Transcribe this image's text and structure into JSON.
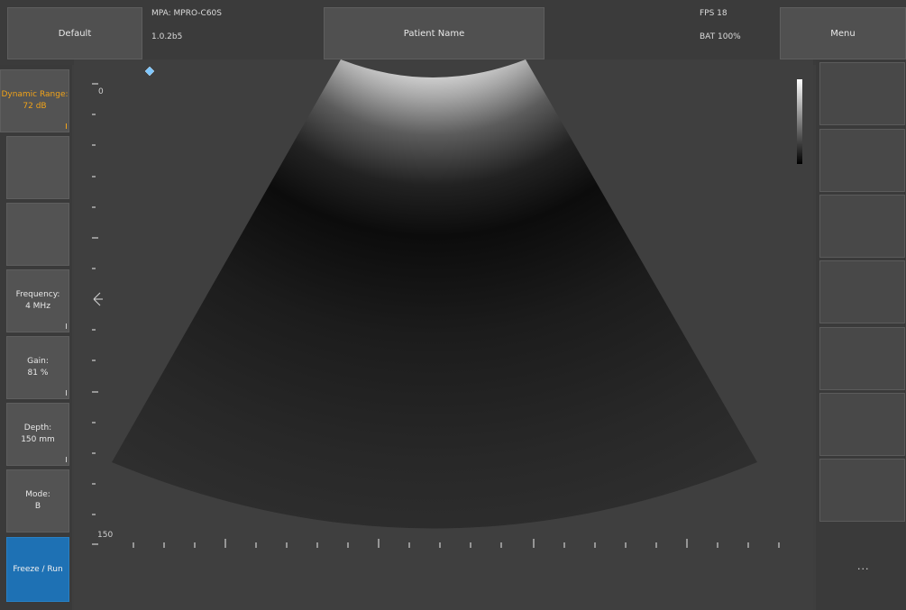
{
  "top_bar": {
    "preset_button": "Default",
    "probe_line1": "MPA: MPRO-C60S",
    "probe_line2": "1.0.2b5",
    "patient_button": "Patient Name",
    "fps": "FPS 18",
    "battery": "BAT 100%",
    "menu_button": "Menu"
  },
  "left_panel": {
    "dynamic_range": {
      "label": "Dynamic Range:",
      "value": "72 dB"
    },
    "frequency": {
      "label": "Frequency:",
      "value": "4 MHz"
    },
    "gain": {
      "label": "Gain:",
      "value": "81 %"
    },
    "depth": {
      "label": "Depth:",
      "value": "150 mm"
    },
    "mode": {
      "label": "Mode:",
      "value": "B"
    },
    "freeze_button": "Freeze / Run"
  },
  "image": {
    "depth_top_label": "0",
    "depth_bottom_label": "150"
  },
  "right_panel": {
    "more_label": "...",
    "empty_buttons": 7
  },
  "colors": {
    "accent_orange": "#f0a31a",
    "freeze_blue": "#1e71b4",
    "marker_blue": "#7fc8ff"
  }
}
